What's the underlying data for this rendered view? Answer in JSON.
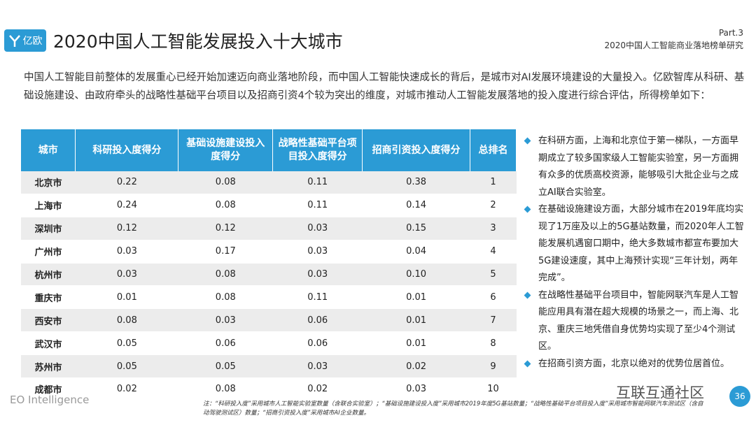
{
  "header": {
    "logo": "亿欧",
    "title": "2020中国人工智能发展投入十大城市",
    "part": "Part.3",
    "subtitle": "2020中国人工智能商业落地榜单研究"
  },
  "intro": "中国人工智能目前整体的发展重心已经开始加速迈向商业落地阶段，而中国人工智能快速成长的背后，是城市对AI发展环境建设的大量投入。亿欧智库从科研、基础设施建设、由政府牵头的战略性基础平台项目以及招商引资4个较为突出的维度，对城市推动人工智能发展落地的投入度进行综合评估，所得榜单如下：",
  "table": {
    "columns": [
      "城市",
      "科研投入度得分",
      "基础设施建设投入度得分",
      "战略性基础平台项目投入度得分",
      "招商引资投入度得分",
      "总排名"
    ],
    "rows": [
      [
        "北京市",
        "0.22",
        "0.08",
        "0.11",
        "0.38",
        "1"
      ],
      [
        "上海市",
        "0.24",
        "0.08",
        "0.11",
        "0.14",
        "2"
      ],
      [
        "深圳市",
        "0.12",
        "0.12",
        "0.03",
        "0.15",
        "3"
      ],
      [
        "广州市",
        "0.03",
        "0.17",
        "0.03",
        "0.04",
        "4"
      ],
      [
        "杭州市",
        "0.03",
        "0.08",
        "0.03",
        "0.10",
        "5"
      ],
      [
        "重庆市",
        "0.01",
        "0.08",
        "0.11",
        "0.01",
        "6"
      ],
      [
        "西安市",
        "0.08",
        "0.03",
        "0.06",
        "0.01",
        "7"
      ],
      [
        "武汉市",
        "0.05",
        "0.06",
        "0.06",
        "0.01",
        "8"
      ],
      [
        "苏州市",
        "0.05",
        "0.05",
        "0.03",
        "0.02",
        "9"
      ],
      [
        "成都市",
        "0.02",
        "0.08",
        "0.02",
        "0.03",
        "10"
      ]
    ]
  },
  "bullets": [
    "在科研方面，上海和北京位于第一梯队，一方面早期成立了较多国家级人工智能实验室，另一方面拥有众多的优质高校资源，能够吸引大批企业与之成立AI联合实验室。",
    "在基础设施建设方面，大部分城市在2019年底均实现了1万座及以上的5G基站数量，而2020年人工智能发展机遇窗口期中，绝大多数城市都宣布要加大5G建设速度，其中上海预计实现“三年计划，两年完成”。",
    "在战略性基础平台项目中，智能网联汽车是人工智能应用具有潜在超大规模的场景之一，而上海、北京、重庆三地凭借自身优势均实现了至少4个测试区。",
    "在招商引资方面，北京以绝对的优势位居首位。"
  ],
  "footer": {
    "brand": "EO Intelligence",
    "note": "注：“科研投入度”采用城市人工智能实验室数量（含联合实验室）；“基础设施建设投入度”采用城市2019年度5G基站数量；“战略性基础平台项目投入度”采用城市智能网联汽车测试区（含自动驾驶测试区）数量；“招商引资投入度”采用城市AI企业数量。",
    "watermark": "互联互通社区",
    "page": "36"
  }
}
